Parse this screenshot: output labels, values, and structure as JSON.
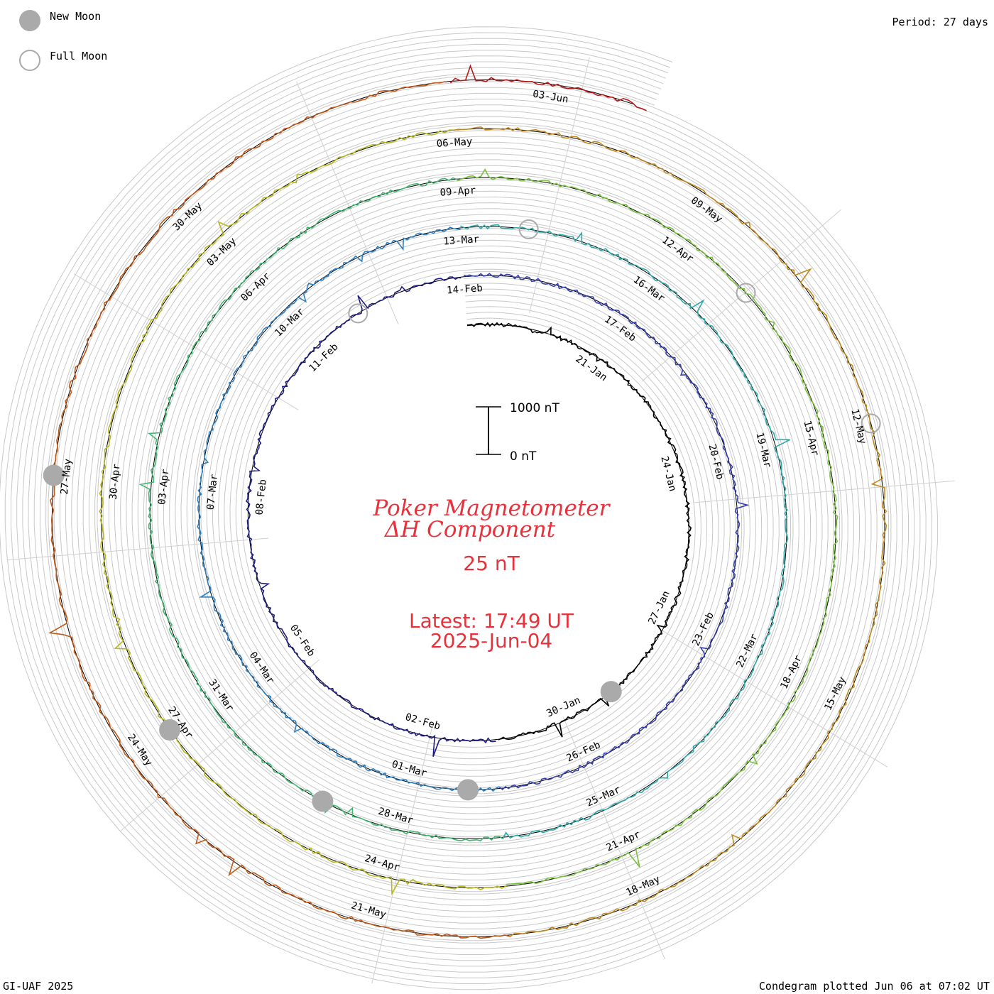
{
  "legend": {
    "new_moon_label": "New Moon",
    "full_moon_label": "Full Moon",
    "new_moon_color": "#aaaaaa",
    "full_moon_color": "#aaaaaa"
  },
  "period_text": "Period: 27 days",
  "footer_left": "GI-UAF 2025",
  "footer_right": "Condegram plotted Jun 06 at 07:02 UT",
  "title_line1": "Poker Magnetometer",
  "title_line2": "ΔH Component",
  "value_text": "25 nT",
  "latest_line1": "Latest: 17:49 UT",
  "latest_line2": "2025-Jun-04",
  "scale_bar": {
    "top_label": "1000 nT",
    "bottom_label": "0 nT"
  },
  "chart_data": {
    "type": "line",
    "subtype": "condegram-spiral",
    "period_days": 27,
    "start_date": "2025-01-18",
    "end_date": "2025-06-04",
    "scale_nT": [
      0,
      1000
    ],
    "grid": true,
    "series_colors": [
      "#000000",
      "#1c1c80",
      "#3540b0",
      "#2f7fc0",
      "#30a8a8",
      "#40b870",
      "#7ac040",
      "#b8b820",
      "#c08a20",
      "#c05a18",
      "#b81818"
    ],
    "date_labels": [
      {
        "text": "21-Jan",
        "day": 3
      },
      {
        "text": "24-Jan",
        "day": 6
      },
      {
        "text": "27-Jan",
        "day": 9
      },
      {
        "text": "30-Jan",
        "day": 12
      },
      {
        "text": "02-Feb",
        "day": 15
      },
      {
        "text": "05-Feb",
        "day": 18
      },
      {
        "text": "08-Feb",
        "day": 21
      },
      {
        "text": "11-Feb",
        "day": 24
      },
      {
        "text": "14-Feb",
        "day": 27
      },
      {
        "text": "17-Feb",
        "day": 30
      },
      {
        "text": "20-Feb",
        "day": 33
      },
      {
        "text": "23-Feb",
        "day": 36
      },
      {
        "text": "26-Feb",
        "day": 39
      },
      {
        "text": "01-Mar",
        "day": 42
      },
      {
        "text": "04-Mar",
        "day": 45
      },
      {
        "text": "07-Mar",
        "day": 48
      },
      {
        "text": "10-Mar",
        "day": 51
      },
      {
        "text": "13-Mar",
        "day": 54
      },
      {
        "text": "16-Mar",
        "day": 57
      },
      {
        "text": "19-Mar",
        "day": 60
      },
      {
        "text": "22-Mar",
        "day": 63
      },
      {
        "text": "25-Mar",
        "day": 66
      },
      {
        "text": "28-Mar",
        "day": 69
      },
      {
        "text": "31-Mar",
        "day": 72
      },
      {
        "text": "03-Apr",
        "day": 75
      },
      {
        "text": "06-Apr",
        "day": 78
      },
      {
        "text": "09-Apr",
        "day": 81
      },
      {
        "text": "12-Apr",
        "day": 84
      },
      {
        "text": "15-Apr",
        "day": 87
      },
      {
        "text": "18-Apr",
        "day": 90
      },
      {
        "text": "21-Apr",
        "day": 93
      },
      {
        "text": "24-Apr",
        "day": 96
      },
      {
        "text": "27-Apr",
        "day": 99
      },
      {
        "text": "30-Apr",
        "day": 102
      },
      {
        "text": "03-May",
        "day": 105
      },
      {
        "text": "06-May",
        "day": 108
      },
      {
        "text": "09-May",
        "day": 111
      },
      {
        "text": "12-May",
        "day": 114
      },
      {
        "text": "15-May",
        "day": 117
      },
      {
        "text": "18-May",
        "day": 120
      },
      {
        "text": "21-May",
        "day": 123
      },
      {
        "text": "24-May",
        "day": 126
      },
      {
        "text": "27-May",
        "day": 129
      },
      {
        "text": "30-May",
        "day": 132
      },
      {
        "text": "03-Jun",
        "day": 136
      }
    ],
    "new_moons": [
      "2025-01-29",
      "2025-02-28",
      "2025-03-29",
      "2025-04-27",
      "2025-05-27"
    ],
    "full_moons": [
      "2025-02-12",
      "2025-03-14",
      "2025-04-13",
      "2025-05-12"
    ]
  }
}
